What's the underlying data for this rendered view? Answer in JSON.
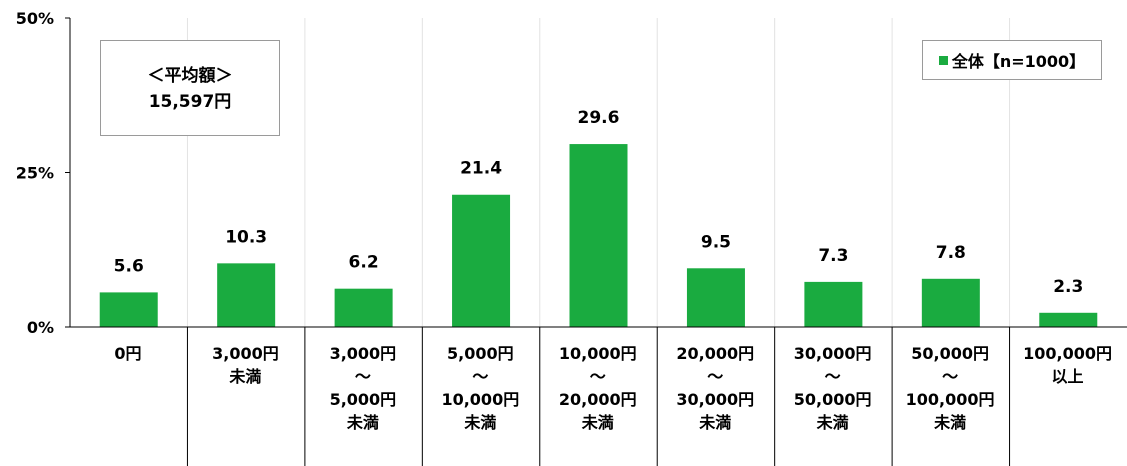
{
  "chart_data": {
    "type": "bar",
    "categories": [
      "0円",
      "3,000円\n未満",
      "3,000円\n～\n5,000円\n未満",
      "5,000円\n～\n10,000円\n未満",
      "10,000円\n～\n20,000円\n未満",
      "20,000円\n～\n30,000円\n未満",
      "30,000円\n～\n50,000円\n未満",
      "50,000円\n～\n100,000円\n未満",
      "100,000円\n以上"
    ],
    "series": [
      {
        "name": "全体【n=1000】",
        "values": [
          5.6,
          10.3,
          6.2,
          21.4,
          29.6,
          9.5,
          7.3,
          7.8,
          2.3
        ]
      }
    ],
    "value_labels": [
      "5.6",
      "10.3",
      "6.2",
      "21.4",
      "29.6",
      "9.5",
      "7.3",
      "7.8",
      "2.3"
    ],
    "ylim": [
      0,
      50
    ],
    "yticks": [
      "0%",
      "25%",
      "50%"
    ],
    "grid": "vertical category separators",
    "legend": "top-right",
    "bar_color": "#1aab40",
    "annotation": {
      "title": "＜平均額＞",
      "value": "15,597円"
    }
  }
}
